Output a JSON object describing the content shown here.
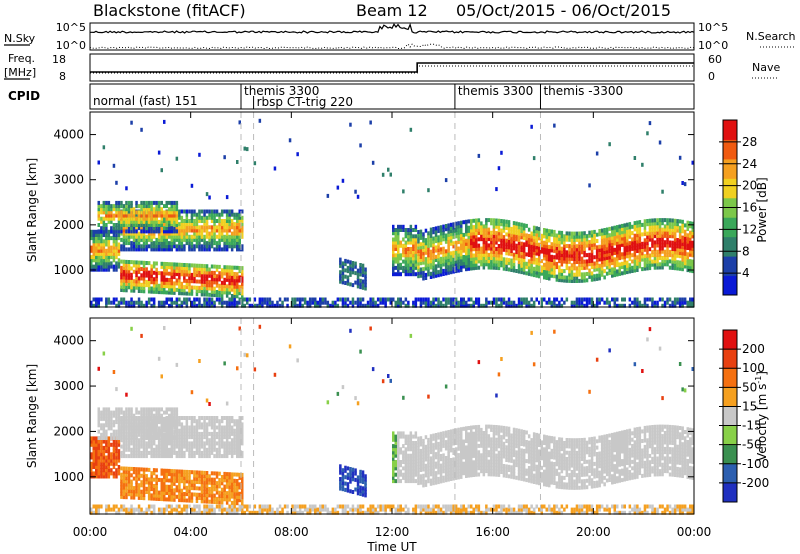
{
  "header": {
    "station": "Blackstone (fitACF)",
    "beam": "Beam 12",
    "date_range": "05/Oct/2015 - 06/Oct/2015"
  },
  "top_panels": {
    "nsky_label": "N.Sky",
    "nsky_ticks": [
      "10^5",
      "10^0"
    ],
    "nsearch_label": "N.Search",
    "nsearch_ticks": [
      "10^5",
      "10^0"
    ],
    "freq_label": "Freq.",
    "freq_unit": "[MHz]",
    "freq_ticks": [
      "18",
      "8"
    ],
    "nave_label": "Nave",
    "nave_ticks": [
      "60",
      "0"
    ],
    "cpid_label": "CPID"
  },
  "cpid_segments": [
    {
      "label": "normal (fast) 151",
      "start_h": 0.0
    },
    {
      "label": "themis 3300",
      "start_h": 6.0
    },
    {
      "label": "rbsp CT-trig 220",
      "start_h": 6.5
    },
    {
      "label": "themis 3300",
      "start_h": 14.5
    },
    {
      "label": "themis -3300",
      "start_h": 17.9
    }
  ],
  "colors": {
    "power_scale": [
      "#0a1ad6",
      "#1c3fa8",
      "#2f7f6a",
      "#3aa85a",
      "#7cc84a",
      "#f0d020",
      "#f5a020",
      "#f05a10",
      "#e01010"
    ],
    "velocity_scale": [
      "#2030c0",
      "#2c5fb0",
      "#3a9050",
      "#88d048",
      "#c8c8c8",
      "#f5a020",
      "#f57010",
      "#e84010",
      "#e01010"
    ]
  },
  "chart_data": [
    {
      "type": "heatmap",
      "title": "Power",
      "xlabel": "Time UT",
      "ylabel": "Slant Range [km]",
      "x_ticks": [
        "00:00",
        "04:00",
        "08:00",
        "12:00",
        "16:00",
        "20:00",
        "00:00"
      ],
      "y_ticks": [
        "1000",
        "2000",
        "3000",
        "4000"
      ],
      "xlim": [
        0,
        24
      ],
      "ylim": [
        180,
        4500
      ],
      "colorbar_label": "Power [dB]",
      "colorbar_ticks": [
        "4",
        "8",
        "12",
        "16",
        "20",
        "24",
        "28"
      ],
      "colorbar_range": [
        0,
        30
      ]
    },
    {
      "type": "heatmap",
      "title": "Velocity",
      "xlabel": "Time UT",
      "ylabel": "Slant Range [km]",
      "x_ticks": [
        "00:00",
        "04:00",
        "08:00",
        "12:00",
        "16:00",
        "20:00",
        "00:00"
      ],
      "y_ticks": [
        "1000",
        "2000",
        "3000",
        "4000"
      ],
      "xlim": [
        0,
        24
      ],
      "ylim": [
        180,
        4500
      ],
      "colorbar_label": "Velocity [m s",
      "colorbar_label_sup": "-1",
      "colorbar_label_end": "]",
      "colorbar_ticks": [
        "-200",
        "-100",
        "-50",
        "-15",
        "15",
        "50",
        "100",
        "200"
      ]
    }
  ]
}
